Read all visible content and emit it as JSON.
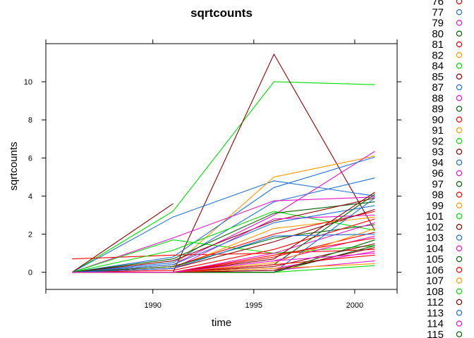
{
  "chart_data": {
    "type": "line",
    "title": "sqrtcounts",
    "xlabel": "time",
    "ylabel": "sqrtcounts",
    "xlim": [
      1984.7,
      2002.1
    ],
    "ylim": [
      -0.9,
      12.0
    ],
    "x_ticks": [
      1990,
      1995,
      2000
    ],
    "y_ticks": [
      0,
      2,
      4,
      6,
      8,
      10
    ],
    "grid": false,
    "legend_placement": "right",
    "legend": [
      {
        "name": "76",
        "color": "#cc0000"
      },
      {
        "name": "77",
        "color": "#1f6fd6"
      },
      {
        "name": "79",
        "color": "#e614c8"
      },
      {
        "name": "80",
        "color": "#006400"
      },
      {
        "name": "81",
        "color": "#ff0000"
      },
      {
        "name": "82",
        "color": "#ff9900"
      },
      {
        "name": "84",
        "color": "#00dd00"
      },
      {
        "name": "85",
        "color": "#8b0000"
      },
      {
        "name": "87",
        "color": "#1f6fd6"
      },
      {
        "name": "88",
        "color": "#e614c8"
      },
      {
        "name": "89",
        "color": "#006400"
      },
      {
        "name": "90",
        "color": "#ff0000"
      },
      {
        "name": "91",
        "color": "#ff9900"
      },
      {
        "name": "92",
        "color": "#00dd00"
      },
      {
        "name": "93",
        "color": "#8b0000"
      },
      {
        "name": "94",
        "color": "#1f6fd6"
      },
      {
        "name": "96",
        "color": "#e614c8"
      },
      {
        "name": "97",
        "color": "#006400"
      },
      {
        "name": "98",
        "color": "#ff0000"
      },
      {
        "name": "99",
        "color": "#ff9900"
      },
      {
        "name": "101",
        "color": "#00dd00"
      },
      {
        "name": "102",
        "color": "#8b0000"
      },
      {
        "name": "103",
        "color": "#1f6fd6"
      },
      {
        "name": "104",
        "color": "#e614c8"
      },
      {
        "name": "105",
        "color": "#006400"
      },
      {
        "name": "106",
        "color": "#ff0000"
      },
      {
        "name": "107",
        "color": "#ff9900"
      },
      {
        "name": "108",
        "color": "#00dd00"
      },
      {
        "name": "112",
        "color": "#8b0000"
      },
      {
        "name": "113",
        "color": "#1f6fd6"
      },
      {
        "name": "114",
        "color": "#e614c8"
      },
      {
        "name": "115",
        "color": "#006400"
      }
    ],
    "series": [
      {
        "color": "#00dd00",
        "x": [
          1986,
          1991,
          1996,
          2001
        ],
        "values": [
          0,
          3.2,
          10.0,
          9.85
        ]
      },
      {
        "color": "#8b0000",
        "x": [
          1986,
          1991,
          1996,
          2001
        ],
        "values": [
          0,
          0,
          11.45,
          2.2
        ]
      },
      {
        "color": "#1f6fd6",
        "x": [
          1986,
          1991,
          1996,
          2001
        ],
        "values": [
          0,
          2.9,
          4.8,
          4.0
        ]
      },
      {
        "color": "#8b0000",
        "x": [
          1986,
          1991
        ],
        "values": [
          0,
          3.6
        ]
      },
      {
        "color": "#ff9900",
        "x": [
          1986,
          1991,
          1996,
          2001
        ],
        "values": [
          0,
          0.3,
          5.0,
          6.1
        ]
      },
      {
        "color": "#e614c8",
        "x": [
          1986,
          1991,
          1996,
          2001
        ],
        "values": [
          0,
          0.4,
          3.0,
          6.35
        ]
      },
      {
        "color": "#1f6fd6",
        "x": [
          1986,
          1991,
          1996,
          2001
        ],
        "values": [
          0,
          0.8,
          4.45,
          6.05
        ]
      },
      {
        "color": "#1f6fd6",
        "x": [
          1986,
          1991,
          1996,
          2001
        ],
        "values": [
          0,
          0.5,
          3.7,
          4.95
        ]
      },
      {
        "color": "#e614c8",
        "x": [
          1986,
          1991,
          1996,
          2001
        ],
        "values": [
          0,
          1.8,
          3.75,
          3.95
        ]
      },
      {
        "color": "#ff0000",
        "x": [
          1986,
          1991,
          1996,
          2001
        ],
        "values": [
          0.7,
          0.9,
          1.0,
          1.2
        ]
      },
      {
        "color": "#00dd00",
        "x": [
          1986,
          1991,
          1996,
          2001
        ],
        "values": [
          0,
          1.7,
          1.0,
          1.4
        ]
      },
      {
        "color": "#00dd00",
        "x": [
          1986,
          1991,
          1996,
          2001
        ],
        "values": [
          0,
          1.15,
          3.2,
          2.2
        ]
      },
      {
        "color": "#006400",
        "x": [
          1986,
          1991,
          1996,
          2001
        ],
        "values": [
          0,
          0.7,
          3.1,
          3.7
        ]
      },
      {
        "color": "#ff9900",
        "x": [
          1986,
          1991,
          1996,
          2001
        ],
        "values": [
          0,
          0.2,
          2.3,
          2.9
        ]
      },
      {
        "color": "#8b0000",
        "x": [
          1986,
          1991,
          1996,
          2001
        ],
        "values": [
          0,
          0.6,
          2.7,
          3.9
        ]
      },
      {
        "color": "#ff0000",
        "x": [
          1986,
          1991,
          1996,
          2001
        ],
        "values": [
          0,
          0.3,
          2.0,
          3.2
        ]
      },
      {
        "color": "#e614c8",
        "x": [
          1986,
          1991,
          1996,
          2001
        ],
        "values": [
          0,
          0.2,
          2.8,
          3.0
        ]
      },
      {
        "color": "#1f6fd6",
        "x": [
          1986,
          1991,
          1996,
          2001
        ],
        "values": [
          0,
          0.4,
          2.6,
          3.5
        ]
      },
      {
        "color": "#006400",
        "x": [
          1986,
          1991,
          1996,
          2001
        ],
        "values": [
          0,
          0.3,
          1.8,
          2.5
        ]
      },
      {
        "color": "#ff0000",
        "x": [
          1986,
          1991,
          1996,
          2001
        ],
        "values": [
          0,
          0.1,
          1.2,
          2.8
        ]
      },
      {
        "color": "#8b0000",
        "x": [
          1986,
          1991,
          1996,
          2001
        ],
        "values": [
          0,
          0.2,
          1.6,
          3.3
        ]
      },
      {
        "color": "#e614c8",
        "x": [
          1986,
          1991,
          1996,
          2001
        ],
        "values": [
          0,
          0,
          1.0,
          2.6
        ]
      },
      {
        "color": "#ff0000",
        "x": [
          1986,
          1991,
          1996,
          2001
        ],
        "values": [
          0,
          0,
          0.8,
          2.1
        ]
      },
      {
        "color": "#8b0000",
        "x": [
          1986,
          1991,
          1996,
          2001
        ],
        "values": [
          0,
          0,
          0.7,
          4.2
        ]
      },
      {
        "color": "#006400",
        "x": [
          1986,
          1991,
          1996,
          2001
        ],
        "values": [
          0,
          0,
          0.4,
          4.1
        ]
      },
      {
        "color": "#1f6fd6",
        "x": [
          1986,
          1991,
          1996,
          2001
        ],
        "values": [
          0,
          0,
          0,
          3.9
        ]
      },
      {
        "color": "#e614c8",
        "x": [
          1986,
          1991,
          1996,
          2001
        ],
        "values": [
          0,
          0,
          0.6,
          1.9
        ]
      },
      {
        "color": "#ff9900",
        "x": [
          1986,
          1991,
          1996,
          2001
        ],
        "values": [
          0,
          0,
          0.5,
          2.3
        ]
      },
      {
        "color": "#ff0000",
        "x": [
          1986,
          1991,
          1996,
          2001
        ],
        "values": [
          0,
          0,
          0.9,
          1.8
        ]
      },
      {
        "color": "#8b0000",
        "x": [
          1986,
          1991,
          1996,
          2001
        ],
        "values": [
          0,
          0,
          0.3,
          1.5
        ]
      },
      {
        "color": "#e614c8",
        "x": [
          1986,
          1991,
          1996,
          2001
        ],
        "values": [
          0,
          0,
          0.2,
          1.1
        ]
      },
      {
        "color": "#006400",
        "x": [
          1986,
          1991,
          1996,
          2001
        ],
        "values": [
          0,
          0,
          0,
          1.4
        ]
      },
      {
        "color": "#ff0000",
        "x": [
          1986,
          1991,
          1996,
          2001
        ],
        "values": [
          0,
          0,
          0.4,
          0.9
        ]
      },
      {
        "color": "#e614c8",
        "x": [
          1986,
          1991,
          1996,
          2001
        ],
        "values": [
          0,
          0,
          0.1,
          0.6
        ]
      },
      {
        "color": "#00dd00",
        "x": [
          1986,
          1991,
          1996,
          2001
        ],
        "values": [
          0,
          0,
          0,
          0.35
        ]
      },
      {
        "color": "#ff9900",
        "x": [
          1986,
          1991,
          1996,
          2001
        ],
        "values": [
          0,
          0,
          0.2,
          0.45
        ]
      },
      {
        "color": "#006400",
        "x": [
          1986,
          1991,
          1996,
          2001
        ],
        "values": [
          0,
          0,
          0,
          1.7
        ]
      },
      {
        "color": "#8b0000",
        "x": [
          1986,
          1991,
          1996,
          2001
        ],
        "values": [
          0,
          0,
          0.1,
          1.3
        ]
      },
      {
        "color": "#1f6fd6",
        "x": [
          1986,
          1991,
          1996,
          2001
        ],
        "values": [
          0,
          0.2,
          1.9,
          2.0
        ]
      },
      {
        "color": "#e614c8",
        "x": [
          1986,
          1991,
          1996,
          2001
        ],
        "values": [
          0,
          0,
          0.6,
          1.0
        ]
      }
    ]
  }
}
